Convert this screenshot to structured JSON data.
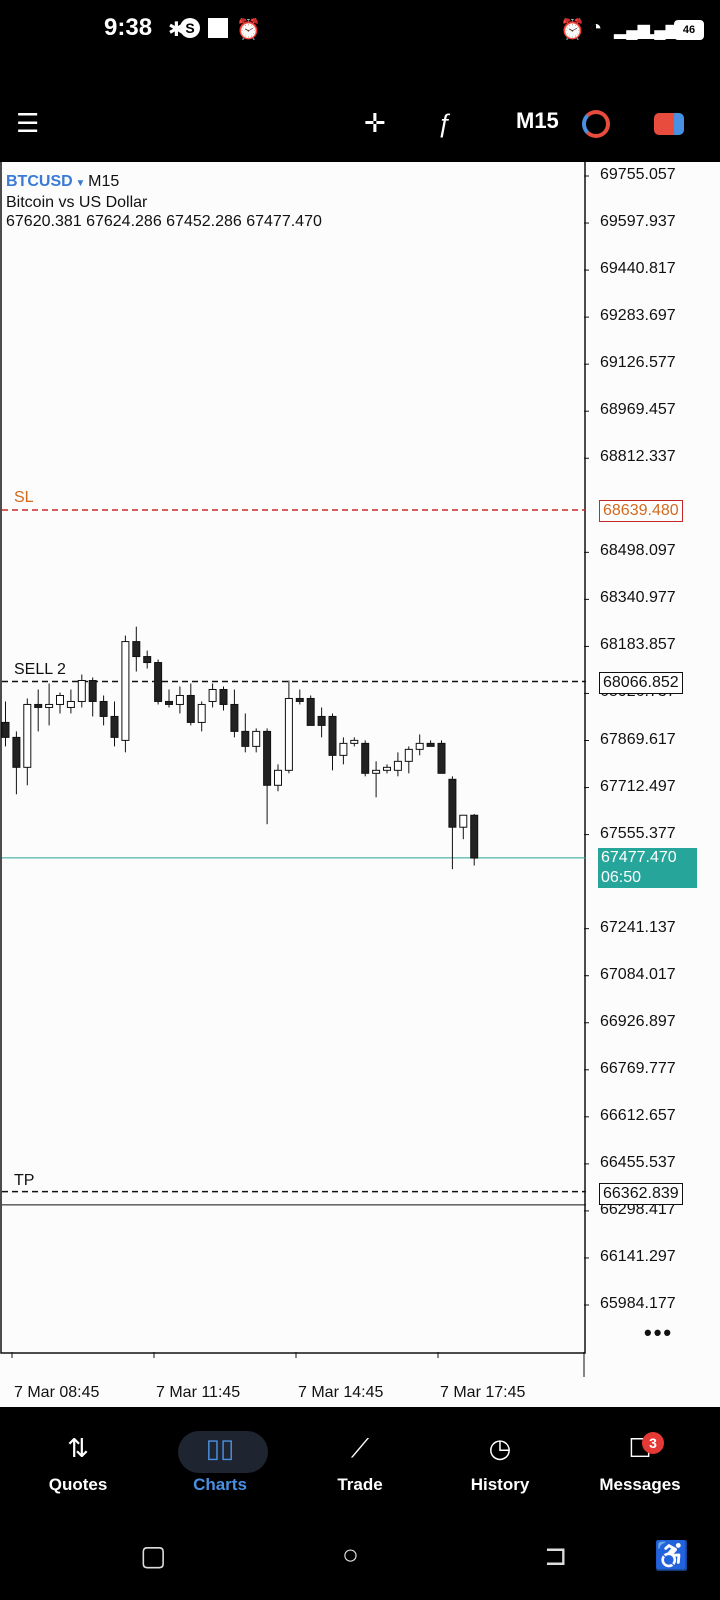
{
  "status_bar": {
    "time": "9:38",
    "battery": "46"
  },
  "toolbar": {
    "timeframe": "M15"
  },
  "chart_header": {
    "symbol": "BTCUSD",
    "timeframe": "M15",
    "description": "Bitcoin vs US Dollar",
    "ohlc": "67620.381 67624.286 67452.286 67477.470"
  },
  "levels": {
    "sl": {
      "label": "SL",
      "price": "68639.480",
      "color": "#c62828"
    },
    "sell": {
      "label": "SELL 2",
      "price": "68066.852"
    },
    "tp": {
      "label": "TP",
      "price": "66362.839"
    },
    "current": {
      "price": "67477.470",
      "countdown": "06:50",
      "color": "#26a69a"
    }
  },
  "price_axis": [
    "69755.057",
    "69597.937",
    "69440.817",
    "69283.697",
    "69126.577",
    "68969.457",
    "68812.337",
    "68498.097",
    "68340.977",
    "68183.857",
    "68026.737",
    "67869.617",
    "67712.497",
    "67555.377",
    "67241.137",
    "67084.017",
    "66926.897",
    "66769.777",
    "66612.657",
    "66455.537",
    "66298.417",
    "66141.297",
    "65984.177"
  ],
  "time_axis": [
    "7 Mar 08:45",
    "7 Mar 11:45",
    "7 Mar 14:45",
    "7 Mar 17:45"
  ],
  "chart_data": {
    "type": "candlestick",
    "symbol": "BTCUSD",
    "timeframe": "M15",
    "ylim": [
      65900,
      69800
    ],
    "candles": [
      {
        "o": 67930,
        "h": 68000,
        "l": 67850,
        "c": 67880
      },
      {
        "o": 67880,
        "h": 67900,
        "l": 67690,
        "c": 67780
      },
      {
        "o": 67780,
        "h": 68010,
        "l": 67720,
        "c": 67990
      },
      {
        "o": 67990,
        "h": 68040,
        "l": 67900,
        "c": 67980
      },
      {
        "o": 67980,
        "h": 68060,
        "l": 67920,
        "c": 67990
      },
      {
        "o": 67990,
        "h": 68030,
        "l": 67960,
        "c": 68020
      },
      {
        "o": 67980,
        "h": 68040,
        "l": 67960,
        "c": 68000
      },
      {
        "o": 68000,
        "h": 68090,
        "l": 67980,
        "c": 68070
      },
      {
        "o": 68070,
        "h": 68080,
        "l": 67950,
        "c": 68000
      },
      {
        "o": 68000,
        "h": 68020,
        "l": 67920,
        "c": 67950
      },
      {
        "o": 67950,
        "h": 68000,
        "l": 67850,
        "c": 67880
      },
      {
        "o": 67870,
        "h": 68220,
        "l": 67830,
        "c": 68200
      },
      {
        "o": 68200,
        "h": 68250,
        "l": 68100,
        "c": 68150
      },
      {
        "o": 68150,
        "h": 68170,
        "l": 68110,
        "c": 68130
      },
      {
        "o": 68130,
        "h": 68140,
        "l": 67990,
        "c": 68000
      },
      {
        "o": 68000,
        "h": 68040,
        "l": 67980,
        "c": 67990
      },
      {
        "o": 67990,
        "h": 68050,
        "l": 67960,
        "c": 68020
      },
      {
        "o": 68020,
        "h": 68060,
        "l": 67920,
        "c": 67930
      },
      {
        "o": 67930,
        "h": 68000,
        "l": 67900,
        "c": 67990
      },
      {
        "o": 68000,
        "h": 68060,
        "l": 67980,
        "c": 68040
      },
      {
        "o": 68040,
        "h": 68050,
        "l": 67970,
        "c": 67990
      },
      {
        "o": 67990,
        "h": 68040,
        "l": 67880,
        "c": 67900
      },
      {
        "o": 67900,
        "h": 67960,
        "l": 67830,
        "c": 67850
      },
      {
        "o": 67850,
        "h": 67910,
        "l": 67830,
        "c": 67900
      },
      {
        "o": 67900,
        "h": 67910,
        "l": 67590,
        "c": 67720
      },
      {
        "o": 67720,
        "h": 67790,
        "l": 67700,
        "c": 67770
      },
      {
        "o": 67770,
        "h": 68070,
        "l": 67760,
        "c": 68010
      },
      {
        "o": 68010,
        "h": 68040,
        "l": 67990,
        "c": 68000
      },
      {
        "o": 68010,
        "h": 68020,
        "l": 67930,
        "c": 67920
      },
      {
        "o": 67950,
        "h": 67980,
        "l": 67880,
        "c": 67920
      },
      {
        "o": 67950,
        "h": 67960,
        "l": 67770,
        "c": 67820
      },
      {
        "o": 67820,
        "h": 67880,
        "l": 67790,
        "c": 67860
      },
      {
        "o": 67860,
        "h": 67880,
        "l": 67850,
        "c": 67870
      },
      {
        "o": 67860,
        "h": 67870,
        "l": 67750,
        "c": 67760
      },
      {
        "o": 67760,
        "h": 67800,
        "l": 67680,
        "c": 67770
      },
      {
        "o": 67770,
        "h": 67790,
        "l": 67760,
        "c": 67780
      },
      {
        "o": 67770,
        "h": 67830,
        "l": 67750,
        "c": 67800
      },
      {
        "o": 67800,
        "h": 67850,
        "l": 67760,
        "c": 67840
      },
      {
        "o": 67840,
        "h": 67890,
        "l": 67820,
        "c": 67860
      },
      {
        "o": 67860,
        "h": 67870,
        "l": 67850,
        "c": 67850
      },
      {
        "o": 67860,
        "h": 67870,
        "l": 67760,
        "c": 67760
      },
      {
        "o": 67740,
        "h": 67750,
        "l": 67440,
        "c": 67580
      },
      {
        "o": 67580,
        "h": 67620,
        "l": 67540,
        "c": 67620
      },
      {
        "o": 67620,
        "h": 67624,
        "l": 67452,
        "c": 67477
      }
    ]
  },
  "bottom_nav": [
    {
      "label": "Quotes",
      "icon": "⇅"
    },
    {
      "label": "Charts",
      "icon": "▯▯"
    },
    {
      "label": "Trade",
      "icon": "⟋"
    },
    {
      "label": "History",
      "icon": "◷"
    },
    {
      "label": "Messages",
      "icon": "☐",
      "badge": "3"
    }
  ]
}
